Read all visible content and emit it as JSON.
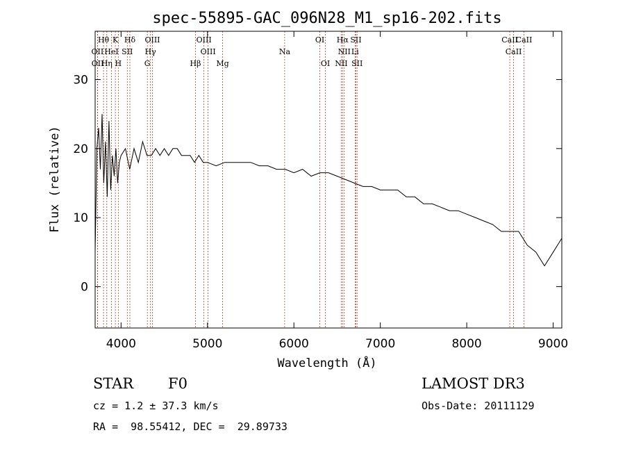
{
  "chart_data": {
    "type": "line",
    "title": "spec-55895-GAC_096N28_M1_sp16-202.fits",
    "xlabel": "Wavelength (Å)",
    "ylabel": "Flux (relative)",
    "xlim": [
      3700,
      9100
    ],
    "ylim": [
      -6,
      37
    ],
    "xticks": [
      4000,
      5000,
      6000,
      7000,
      8000,
      9000
    ],
    "xtick_labels": [
      "4000",
      "5000",
      "6000",
      "7000",
      "8000",
      "9000"
    ],
    "yticks": [
      0,
      10,
      20,
      30
    ],
    "ytick_labels": [
      "0",
      "10",
      "20",
      "30"
    ],
    "grid": false,
    "series": [
      {
        "x": [
          3700,
          3720,
          3740,
          3760,
          3780,
          3800,
          3820,
          3840,
          3860,
          3880,
          3900,
          3920,
          3940,
          3960,
          3980,
          4000,
          4050,
          4100,
          4150,
          4200,
          4250,
          4300,
          4350,
          4400,
          4450,
          4500,
          4550,
          4600,
          4650,
          4700,
          4750,
          4800,
          4850,
          4900,
          4950,
          5000,
          5100,
          5200,
          5300,
          5400,
          5500,
          5600,
          5700,
          5800,
          5900,
          6000,
          6100,
          6200,
          6300,
          6400,
          6500,
          6600,
          6700,
          6800,
          6900,
          7000,
          7100,
          7200,
          7300,
          7400,
          7500,
          7600,
          7700,
          7800,
          7900,
          8000,
          8100,
          8200,
          8300,
          8400,
          8500,
          8600,
          8700,
          8800,
          8900,
          9000,
          9100
        ],
        "y": [
          5,
          20,
          23,
          17,
          25,
          15,
          21,
          13,
          24,
          14,
          19,
          16,
          20,
          15,
          18,
          19,
          20,
          17,
          20,
          18,
          21,
          19,
          19,
          20,
          19,
          20,
          19,
          20,
          20,
          19,
          19,
          19,
          18,
          19,
          18,
          18,
          17.5,
          18,
          18,
          18,
          18,
          17.5,
          17.5,
          17,
          17,
          16.5,
          17,
          16,
          16.5,
          16.5,
          16,
          15.5,
          15,
          14.5,
          14.5,
          14,
          14,
          14,
          13,
          13,
          12,
          12,
          11.5,
          11,
          11,
          10.5,
          10,
          9.5,
          9,
          8,
          8,
          8,
          6,
          5,
          3,
          5,
          7
        ]
      }
    ],
    "spectral_lines": [
      {
        "label": "Hθ",
        "wavelength": 3797
      },
      {
        "label": "K",
        "wavelength": 3934
      },
      {
        "label": "Hδ",
        "wavelength": 4102
      },
      {
        "label": "OIII",
        "wavelength": 4363
      },
      {
        "label": "OIII",
        "wavelength": 4959
      },
      {
        "label": "OI",
        "wavelength": 6300
      },
      {
        "label": "Hα",
        "wavelength": 6563
      },
      {
        "label": "SII",
        "wavelength": 6717
      },
      {
        "label": "CaII",
        "wavelength": 8662
      },
      {
        "label": "OII",
        "wavelength": 3727
      },
      {
        "label": "HeI",
        "wavelength": 3889
      },
      {
        "label": "SII",
        "wavelength": 4072
      },
      {
        "label": "Hγ",
        "wavelength": 4340
      },
      {
        "label": "OIII",
        "wavelength": 5007
      },
      {
        "label": "Na",
        "wavelength": 5893
      },
      {
        "label": "NII",
        "wavelength": 6583
      },
      {
        "label": "Li",
        "wavelength": 6708
      },
      {
        "label": "CaII",
        "wavelength": 8542
      },
      {
        "label": "OII",
        "wavelength": 3729
      },
      {
        "label": "Hη",
        "wavelength": 3835
      },
      {
        "label": "H",
        "wavelength": 3968
      },
      {
        "label": "G",
        "wavelength": 4304
      },
      {
        "label": "Hβ",
        "wavelength": 4861
      },
      {
        "label": "Mg",
        "wavelength": 5175
      },
      {
        "label": "OI",
        "wavelength": 6364
      },
      {
        "label": "NII",
        "wavelength": 6548
      },
      {
        "label": "SII",
        "wavelength": 6731
      },
      {
        "label": "CaII",
        "wavelength": 8498
      }
    ]
  },
  "info": {
    "class": "STAR",
    "subclass": "F0",
    "survey": "LAMOST DR3",
    "cz": "cz = 1.2 ± 37.3 km/s",
    "obs_date": "Obs-Date: 20111129",
    "radec": "RA =  98.55412, DEC =  29.89733"
  }
}
